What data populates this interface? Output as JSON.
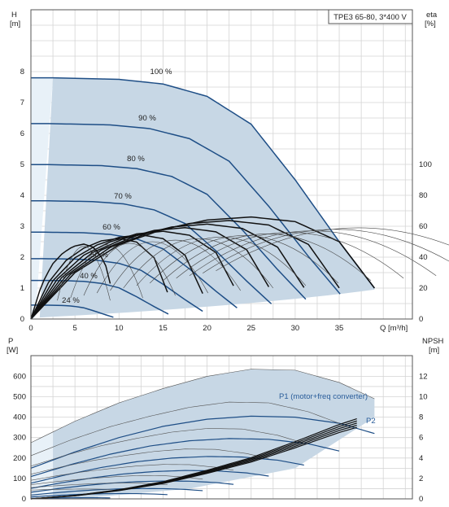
{
  "chart_data": [
    {
      "type": "line",
      "title": "TPE3 65-80, 3*400 V",
      "xlabel": "Q [m³/h]",
      "x_axis": {
        "range": [
          0,
          40
        ],
        "ticks": [
          "0",
          "5",
          "10",
          "15",
          "20",
          "25",
          "30",
          "35"
        ]
      },
      "ylabel": "H\n[m]",
      "y_axis": {
        "range": [
          0,
          9
        ],
        "ticks": [
          "0",
          "1",
          "2",
          "3",
          "4",
          "5",
          "6",
          "7",
          "8"
        ]
      },
      "y2label": "eta\n[%]",
      "y2_axis": {
        "range": [
          0,
          180
        ],
        "ticks": [
          "0",
          "20",
          "40",
          "60",
          "80",
          "100"
        ]
      },
      "grid": true,
      "series": [
        {
          "name": "100 %",
          "speed": 1.0
        },
        {
          "name": "90 %",
          "speed": 0.9
        },
        {
          "name": "80 %",
          "speed": 0.8
        },
        {
          "name": "70 %",
          "speed": 0.7
        },
        {
          "name": "60 %",
          "speed": 0.6
        },
        {
          "name": "50 %",
          "speed": 0.5
        },
        {
          "name": "40 %",
          "speed": 0.4
        },
        {
          "name": "24 %",
          "speed": 0.24
        }
      ],
      "head_curve_100": {
        "x": [
          0,
          2.5,
          10,
          15,
          20,
          25,
          30,
          35,
          39
        ],
        "y": [
          7.8,
          7.8,
          7.75,
          7.6,
          7.2,
          6.3,
          4.5,
          2.5,
          1.0
        ]
      },
      "eta_curve_100": {
        "x": [
          0,
          5,
          10,
          15,
          20,
          25,
          30,
          35,
          39
        ],
        "y": [
          0,
          30,
          48,
          58,
          64,
          66,
          63,
          50,
          20
        ]
      },
      "eta_best_speeds": [
        1.0,
        0.9,
        0.8,
        0.7,
        0.6,
        0.5,
        0.4,
        0.24
      ]
    },
    {
      "type": "line",
      "xlabel": "",
      "x_axis": {
        "range": [
          0,
          40
        ]
      },
      "ylabel": "P\n[W]",
      "y_axis": {
        "range": [
          0,
          700
        ],
        "ticks": [
          "0",
          "100",
          "200",
          "300",
          "400",
          "500",
          "600"
        ]
      },
      "y2label": "NPSH\n[m]",
      "y2_axis": {
        "range": [
          0,
          14
        ],
        "ticks": [
          "0",
          "2",
          "4",
          "6",
          "8",
          "10",
          "12"
        ]
      },
      "grid": true,
      "series": [
        {
          "name": "P1 (motor+freq converter)"
        },
        {
          "name": "P2"
        }
      ],
      "p1_curve_100": {
        "x": [
          0,
          5,
          10,
          15,
          20,
          25,
          30,
          35,
          39
        ],
        "y": [
          275,
          380,
          470,
          540,
          600,
          635,
          630,
          570,
          490
        ]
      },
      "p2_curve_100": {
        "x": [
          0,
          5,
          10,
          15,
          20,
          25,
          30,
          35,
          39
        ],
        "y": [
          150,
          230,
          300,
          355,
          390,
          405,
          400,
          370,
          320
        ]
      },
      "npsh_curve": {
        "x": [
          0,
          5,
          10,
          15,
          20,
          25,
          30,
          35,
          37
        ],
        "y": [
          0,
          0.3,
          0.8,
          1.5,
          2.5,
          3.6,
          5.0,
          6.5,
          7.0
        ]
      }
    }
  ]
}
